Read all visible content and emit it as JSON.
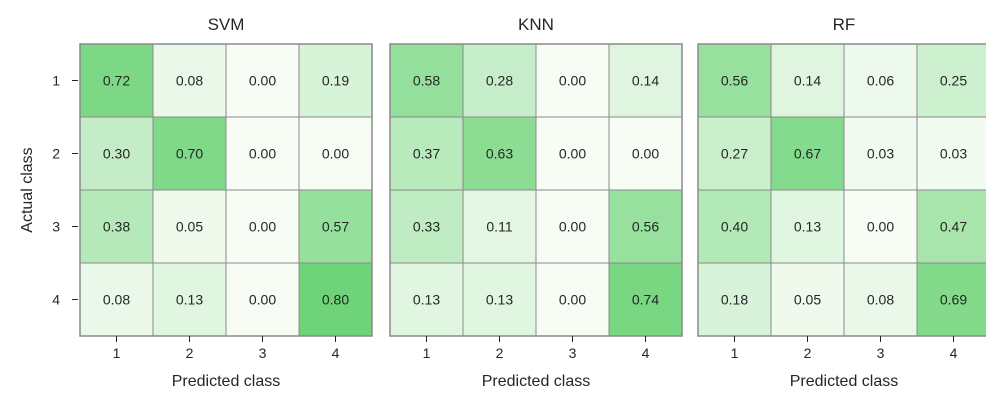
{
  "chart_data": {
    "type": "heatmap",
    "ylabel": "Actual class",
    "xlabel": "Predicted class",
    "row_labels": [
      "1",
      "2",
      "3",
      "4"
    ],
    "col_labels": [
      "1",
      "2",
      "3",
      "4"
    ],
    "vmin": 0,
    "vmax": 0.8,
    "color_low": "#f7fcf5",
    "color_high": "#6fd479",
    "grid_color": "#8a8a8a",
    "panels": [
      {
        "title": "SVM",
        "values": [
          [
            0.72,
            0.08,
            0.0,
            0.19
          ],
          [
            0.3,
            0.7,
            0.0,
            0.0
          ],
          [
            0.38,
            0.05,
            0.0,
            0.57
          ],
          [
            0.08,
            0.13,
            0.0,
            0.8
          ]
        ]
      },
      {
        "title": "KNN",
        "values": [
          [
            0.58,
            0.28,
            0.0,
            0.14
          ],
          [
            0.37,
            0.63,
            0.0,
            0.0
          ],
          [
            0.33,
            0.11,
            0.0,
            0.56
          ],
          [
            0.13,
            0.13,
            0.0,
            0.74
          ]
        ]
      },
      {
        "title": "RF",
        "values": [
          [
            0.56,
            0.14,
            0.06,
            0.25
          ],
          [
            0.27,
            0.67,
            0.03,
            0.03
          ],
          [
            0.4,
            0.13,
            0.0,
            0.47
          ],
          [
            0.18,
            0.05,
            0.08,
            0.69
          ]
        ]
      }
    ]
  }
}
